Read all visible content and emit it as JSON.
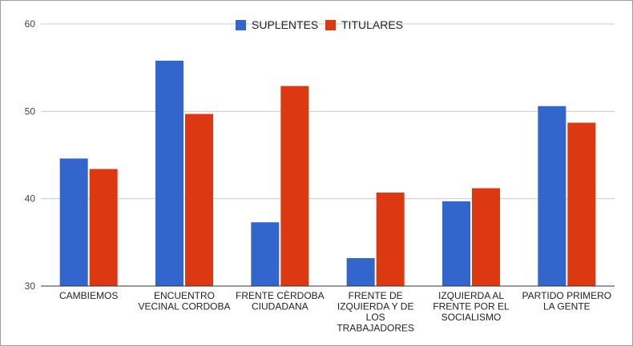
{
  "chart_data": {
    "type": "bar",
    "title": "",
    "xlabel": "",
    "ylabel": "",
    "ylim": [
      30,
      60
    ],
    "y_ticks": [
      "30",
      "40",
      "50",
      "60"
    ],
    "grid": true,
    "legend_position": "top",
    "categories": [
      "CAMBIEMOS",
      "ENCUENTRO VECINAL CORDOBA",
      "FRENTE CÈRDOBA CIUDADANA",
      "FRENTE DE IZQUIERDA Y DE LOS TRABAJADORES",
      "IZQUIERDA AL FRENTE POR EL SOCIALISMO",
      "PARTIDO PRIMERO LA GENTE"
    ],
    "category_lines": [
      [
        "CAMBIEMOS"
      ],
      [
        "ENCUENTRO",
        "VECINAL CORDOBA"
      ],
      [
        "FRENTE CÈRDOBA",
        "CIUDADANA"
      ],
      [
        "FRENTE DE",
        "IZQUIERDA Y DE",
        "LOS",
        "TRABAJADORES"
      ],
      [
        "IZQUIERDA AL",
        "FRENTE POR EL",
        "SOCIALISMO"
      ],
      [
        "PARTIDO PRIMERO",
        "LA GENTE"
      ]
    ],
    "series": [
      {
        "name": "SUPLENTES",
        "color": "#3366cc",
        "values": [
          44.6,
          55.8,
          37.3,
          33.2,
          39.7,
          50.6
        ]
      },
      {
        "name": "TITULARES",
        "color": "#dc3912",
        "values": [
          43.4,
          49.7,
          52.9,
          40.7,
          41.2,
          48.7
        ]
      }
    ]
  }
}
